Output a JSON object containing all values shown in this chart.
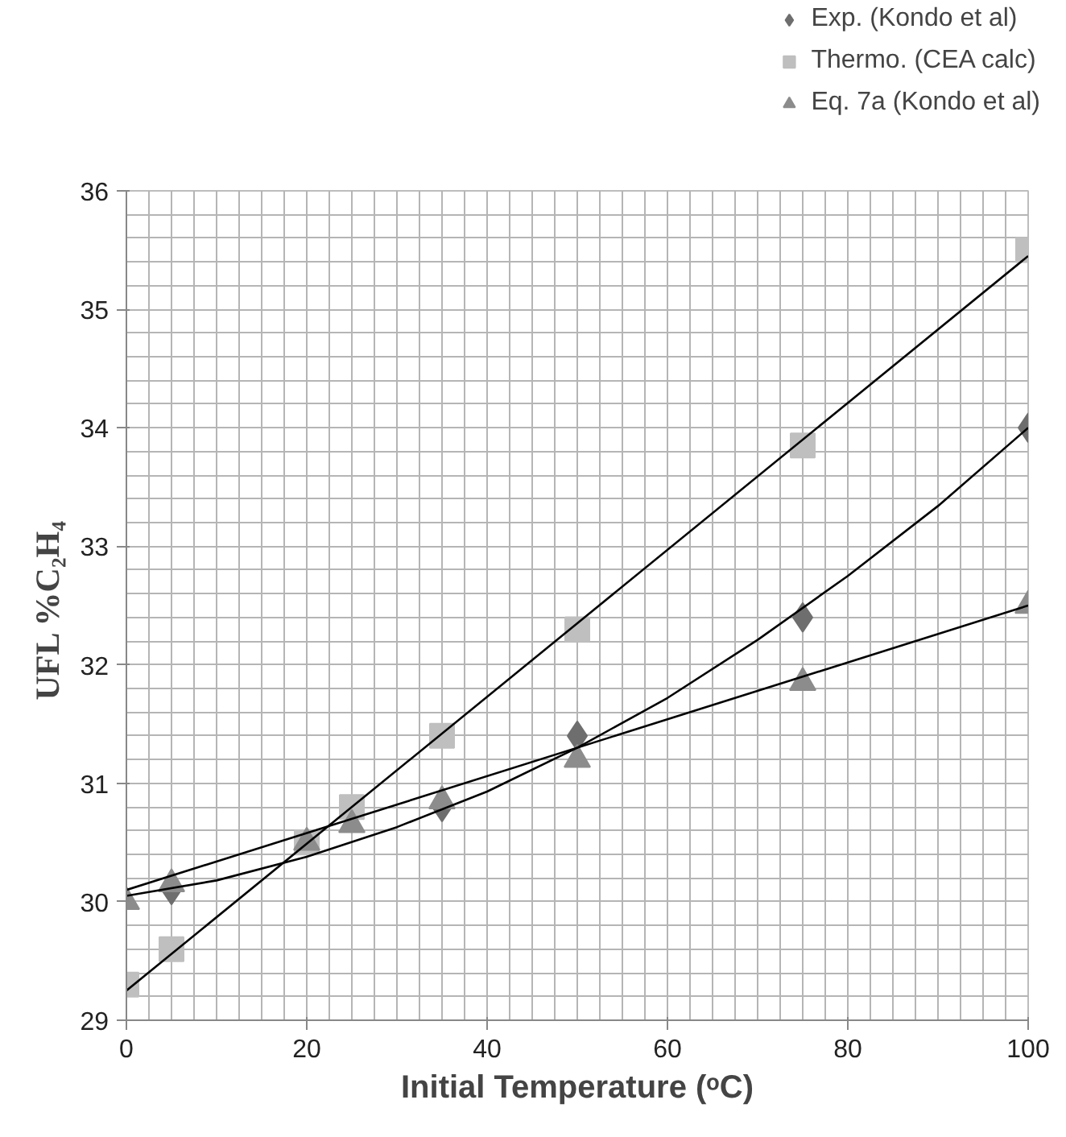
{
  "chart_data": {
    "type": "scatter",
    "xlabel": "Initial Temperature (ᵒC)",
    "ylabel": "UFL  %C₂H₄",
    "xlim": [
      0,
      100
    ],
    "xticks": [
      0,
      20,
      40,
      60,
      80,
      100
    ],
    "ylim": [
      29,
      36
    ],
    "yticks": [
      29,
      30,
      31,
      32,
      33,
      34,
      35,
      36
    ],
    "grid": true,
    "legend": "top right",
    "series": [
      {
        "name": "Exp. (Kondo et al)",
        "color": "#6e6e6e",
        "marker": "diamond",
        "x": [
          5,
          35,
          50,
          75,
          100
        ],
        "values": [
          30.1,
          30.8,
          31.4,
          32.4,
          34.0
        ]
      },
      {
        "name": "Thermo. (CEA calc)",
        "color": "#bfbfbf",
        "marker": "square",
        "x": [
          0,
          5,
          20,
          25,
          35,
          50,
          75,
          100
        ],
        "values": [
          29.3,
          29.6,
          30.5,
          30.8,
          31.4,
          32.3,
          33.85,
          35.5
        ]
      },
      {
        "name": "Eq. 7a (Kondo et al)",
        "color": "#8c8c8c",
        "marker": "triangle",
        "x": [
          0,
          5,
          20,
          25,
          35,
          50,
          75,
          100
        ],
        "values": [
          30.0,
          30.15,
          30.5,
          30.65,
          30.85,
          31.2,
          31.85,
          32.5
        ]
      },
      {
        "type": "line",
        "color": "#000000",
        "marker": "none",
        "x": [
          0,
          10,
          20,
          30,
          40,
          50,
          60,
          70,
          80,
          90,
          100
        ],
        "values": [
          30.05,
          30.18,
          30.38,
          30.63,
          30.93,
          31.3,
          31.72,
          32.21,
          32.75,
          33.34,
          34.0
        ]
      },
      {
        "type": "line",
        "color": "#000000",
        "marker": "none",
        "x": [
          0,
          100
        ],
        "values": [
          29.25,
          35.45
        ]
      },
      {
        "type": "line",
        "color": "#000000",
        "marker": "none",
        "x": [
          0,
          100
        ],
        "values": [
          30.1,
          32.5
        ]
      }
    ]
  }
}
